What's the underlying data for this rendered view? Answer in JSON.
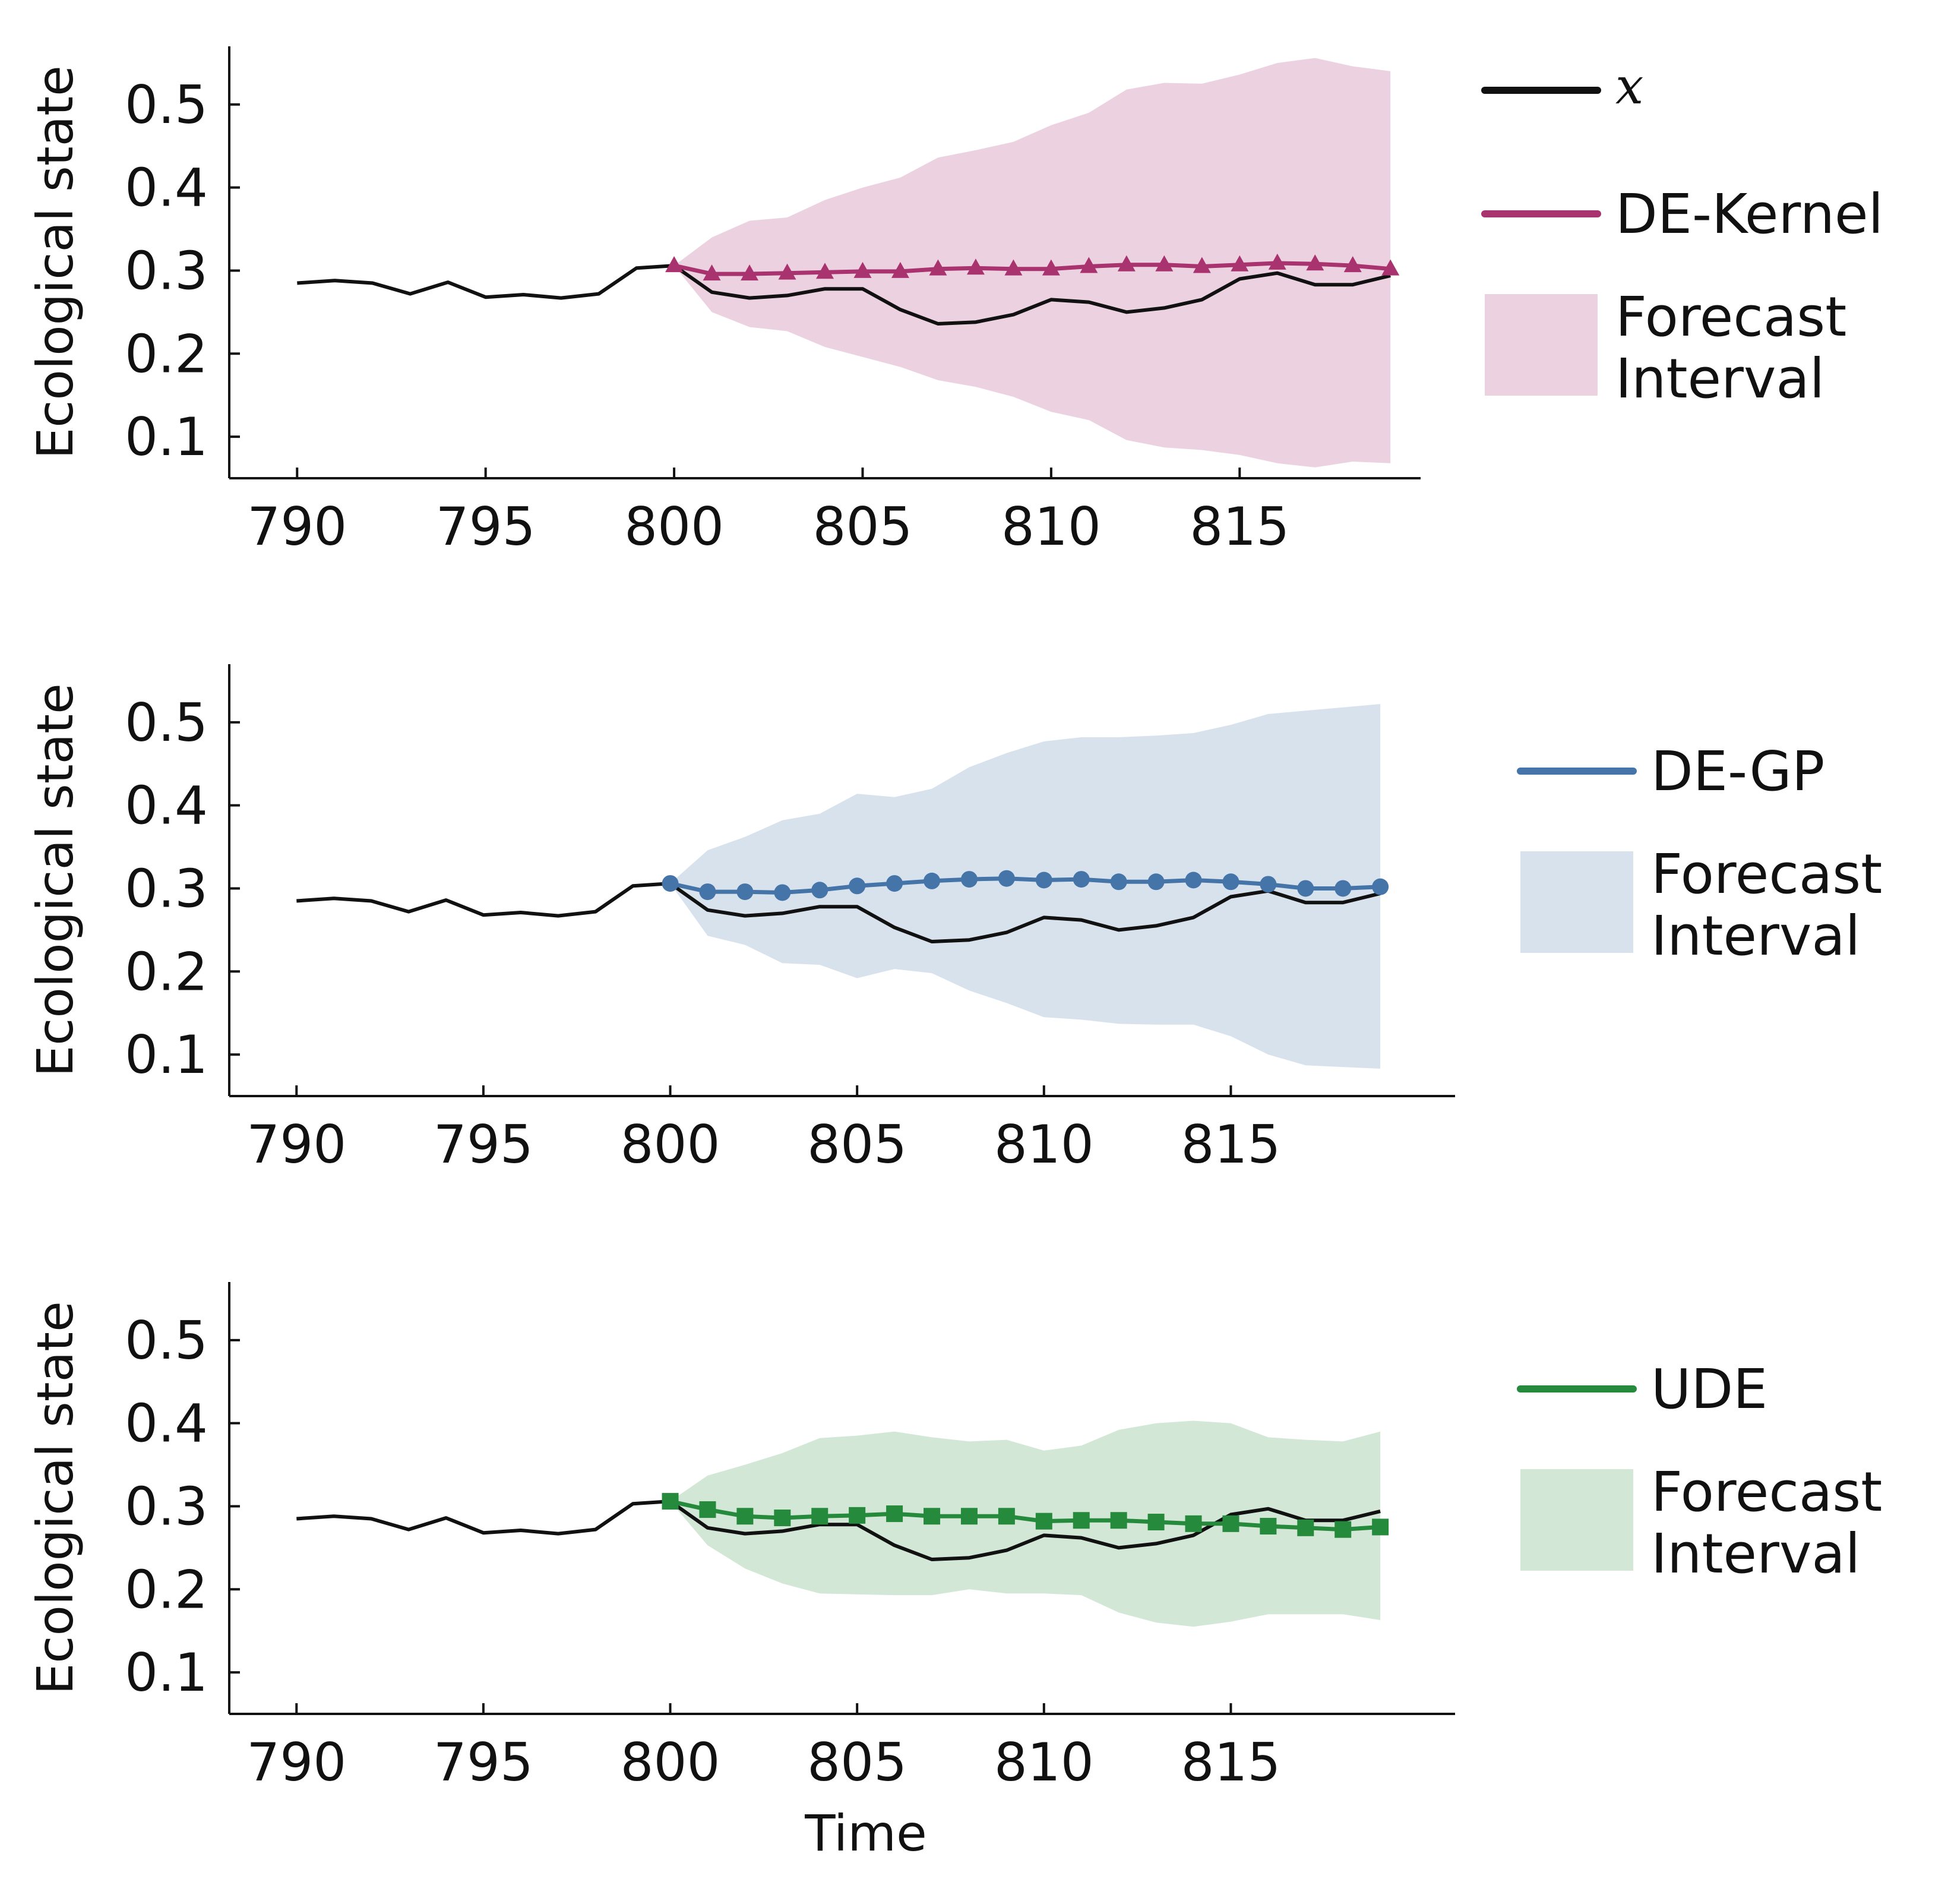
{
  "chart_data": [
    {
      "type": "line",
      "ylabel": "Ecological state",
      "xlabel": "",
      "xlim": [
        788.2,
        819.8
      ],
      "ylim": [
        0.05,
        0.57
      ],
      "x_ticks": [
        790,
        795,
        800,
        805,
        810,
        815
      ],
      "y_ticks": [
        0.1,
        0.2,
        0.3,
        0.4,
        0.5
      ],
      "tick_labels_x": [
        "790",
        "795",
        "800",
        "805",
        "810",
        "815"
      ],
      "tick_labels_y": [
        "0.1",
        "0.2",
        "0.3",
        "0.4",
        "0.5"
      ],
      "series": [
        {
          "name": "x",
          "color": "#111111",
          "x": [
            790,
            791,
            792,
            793,
            794,
            795,
            796,
            797,
            798,
            799,
            800,
            801,
            802,
            803,
            804,
            805,
            806,
            807,
            808,
            809,
            810,
            811,
            812,
            813,
            814,
            815,
            816,
            817,
            818,
            819
          ],
          "values": [
            0.285,
            0.288,
            0.285,
            0.272,
            0.286,
            0.268,
            0.271,
            0.267,
            0.272,
            0.303,
            0.306,
            0.274,
            0.267,
            0.27,
            0.278,
            0.278,
            0.253,
            0.236,
            0.238,
            0.247,
            0.265,
            0.262,
            0.25,
            0.255,
            0.265,
            0.29,
            0.297,
            0.283,
            0.283,
            0.294
          ]
        },
        {
          "name": "DE-Kernel",
          "color": "#a8336f",
          "marker": "triangle",
          "x": [
            800,
            801,
            802,
            803,
            804,
            805,
            806,
            807,
            808,
            809,
            810,
            811,
            812,
            813,
            814,
            815,
            816,
            817,
            818,
            819
          ],
          "values": [
            0.306,
            0.296,
            0.296,
            0.297,
            0.298,
            0.299,
            0.299,
            0.302,
            0.303,
            0.302,
            0.302,
            0.305,
            0.307,
            0.307,
            0.305,
            0.307,
            0.309,
            0.308,
            0.306,
            0.302
          ]
        }
      ],
      "interval": {
        "name": "Forecast Interval",
        "color": "#ecd2e1",
        "x": [
          800,
          801,
          802,
          803,
          804,
          805,
          806,
          807,
          808,
          809,
          810,
          811,
          812,
          813,
          814,
          815,
          816,
          817,
          818,
          819
        ],
        "lower": [
          0.306,
          0.25,
          0.232,
          0.227,
          0.208,
          0.196,
          0.184,
          0.168,
          0.16,
          0.148,
          0.13,
          0.12,
          0.096,
          0.087,
          0.084,
          0.078,
          0.068,
          0.063,
          0.07,
          0.068
        ],
        "upper": [
          0.306,
          0.34,
          0.36,
          0.364,
          0.385,
          0.4,
          0.412,
          0.436,
          0.445,
          0.455,
          0.475,
          0.49,
          0.518,
          0.526,
          0.525,
          0.536,
          0.55,
          0.556,
          0.546,
          0.54
        ]
      },
      "legend": [
        {
          "kind": "line",
          "label": "x",
          "color": "#111111"
        },
        {
          "kind": "line",
          "label": "DE-Kernel",
          "color": "#a8336f"
        },
        {
          "kind": "patch",
          "label_lines": [
            "Forecast",
            "Interval"
          ],
          "color": "#ecd2e1"
        }
      ]
    },
    {
      "type": "line",
      "ylabel": "Ecological state",
      "xlabel": "",
      "xlim": [
        788.2,
        821.0
      ],
      "ylim": [
        0.05,
        0.57
      ],
      "x_ticks": [
        790,
        795,
        800,
        805,
        810,
        815
      ],
      "y_ticks": [
        0.1,
        0.2,
        0.3,
        0.4,
        0.5
      ],
      "tick_labels_x": [
        "790",
        "795",
        "800",
        "805",
        "810",
        "815"
      ],
      "tick_labels_y": [
        "0.1",
        "0.2",
        "0.3",
        "0.4",
        "0.5"
      ],
      "series": [
        {
          "name": "x",
          "color": "#111111",
          "x": [
            790,
            791,
            792,
            793,
            794,
            795,
            796,
            797,
            798,
            799,
            800,
            801,
            802,
            803,
            804,
            805,
            806,
            807,
            808,
            809,
            810,
            811,
            812,
            813,
            814,
            815,
            816,
            817,
            818,
            819
          ],
          "values": [
            0.285,
            0.288,
            0.285,
            0.272,
            0.286,
            0.268,
            0.271,
            0.267,
            0.272,
            0.303,
            0.306,
            0.274,
            0.267,
            0.27,
            0.278,
            0.278,
            0.253,
            0.236,
            0.238,
            0.247,
            0.265,
            0.262,
            0.25,
            0.255,
            0.265,
            0.29,
            0.297,
            0.283,
            0.283,
            0.294
          ]
        },
        {
          "name": "DE-GP",
          "color": "#4474a8",
          "marker": "circle",
          "x": [
            800,
            801,
            802,
            803,
            804,
            805,
            806,
            807,
            808,
            809,
            810,
            811,
            812,
            813,
            814,
            815,
            816,
            817,
            818,
            819
          ],
          "values": [
            0.306,
            0.296,
            0.296,
            0.295,
            0.298,
            0.303,
            0.306,
            0.309,
            0.311,
            0.312,
            0.31,
            0.311,
            0.308,
            0.308,
            0.31,
            0.308,
            0.305,
            0.3,
            0.3,
            0.302
          ]
        }
      ],
      "interval": {
        "name": "Forecast Interval",
        "color": "#d8e2ec",
        "x": [
          800,
          801,
          802,
          803,
          804,
          805,
          806,
          807,
          808,
          809,
          810,
          811,
          812,
          813,
          814,
          815,
          816,
          817,
          818,
          819
        ],
        "lower": [
          0.306,
          0.243,
          0.232,
          0.21,
          0.208,
          0.192,
          0.203,
          0.198,
          0.177,
          0.162,
          0.145,
          0.142,
          0.137,
          0.136,
          0.136,
          0.122,
          0.1,
          0.087,
          0.085,
          0.083
        ],
        "upper": [
          0.306,
          0.346,
          0.362,
          0.382,
          0.39,
          0.414,
          0.41,
          0.42,
          0.446,
          0.463,
          0.477,
          0.482,
          0.482,
          0.484,
          0.487,
          0.497,
          0.51,
          0.514,
          0.518,
          0.522
        ]
      },
      "legend": [
        {
          "kind": "line",
          "label": "DE-GP",
          "color": "#4474a8"
        },
        {
          "kind": "patch",
          "label_lines": [
            "Forecast",
            "Interval"
          ],
          "color": "#d8e2ec"
        }
      ]
    },
    {
      "type": "line",
      "ylabel": "Ecological state",
      "xlabel": "Time",
      "xlim": [
        788.2,
        821.0
      ],
      "ylim": [
        0.05,
        0.57
      ],
      "x_ticks": [
        790,
        795,
        800,
        805,
        810,
        815
      ],
      "y_ticks": [
        0.1,
        0.2,
        0.3,
        0.4,
        0.5
      ],
      "tick_labels_x": [
        "790",
        "795",
        "800",
        "805",
        "810",
        "815"
      ],
      "tick_labels_y": [
        "0.1",
        "0.2",
        "0.3",
        "0.4",
        "0.5"
      ],
      "series": [
        {
          "name": "x",
          "color": "#111111",
          "x": [
            790,
            791,
            792,
            793,
            794,
            795,
            796,
            797,
            798,
            799,
            800,
            801,
            802,
            803,
            804,
            805,
            806,
            807,
            808,
            809,
            810,
            811,
            812,
            813,
            814,
            815,
            816,
            817,
            818,
            819
          ],
          "values": [
            0.285,
            0.288,
            0.285,
            0.272,
            0.286,
            0.268,
            0.271,
            0.267,
            0.272,
            0.303,
            0.306,
            0.274,
            0.267,
            0.27,
            0.278,
            0.278,
            0.253,
            0.236,
            0.238,
            0.247,
            0.265,
            0.262,
            0.25,
            0.255,
            0.265,
            0.29,
            0.297,
            0.283,
            0.283,
            0.294
          ]
        },
        {
          "name": "UDE",
          "color": "#268a3c",
          "marker": "square",
          "x": [
            800,
            801,
            802,
            803,
            804,
            805,
            806,
            807,
            808,
            809,
            810,
            811,
            812,
            813,
            814,
            815,
            816,
            817,
            818,
            819
          ],
          "values": [
            0.306,
            0.296,
            0.288,
            0.286,
            0.288,
            0.289,
            0.291,
            0.288,
            0.288,
            0.288,
            0.282,
            0.283,
            0.283,
            0.281,
            0.279,
            0.279,
            0.276,
            0.274,
            0.272,
            0.275
          ]
        }
      ],
      "interval": {
        "name": "Forecast Interval",
        "color": "#d2e7d6",
        "x": [
          800,
          801,
          802,
          803,
          804,
          805,
          806,
          807,
          808,
          809,
          810,
          811,
          812,
          813,
          814,
          815,
          816,
          817,
          818,
          819
        ],
        "lower": [
          0.306,
          0.253,
          0.225,
          0.207,
          0.195,
          0.194,
          0.193,
          0.193,
          0.2,
          0.195,
          0.195,
          0.193,
          0.172,
          0.16,
          0.155,
          0.161,
          0.17,
          0.17,
          0.17,
          0.163
        ],
        "upper": [
          0.306,
          0.337,
          0.35,
          0.364,
          0.382,
          0.385,
          0.39,
          0.383,
          0.378,
          0.38,
          0.367,
          0.373,
          0.392,
          0.4,
          0.403,
          0.4,
          0.383,
          0.38,
          0.378,
          0.39
        ]
      },
      "legend": [
        {
          "kind": "line",
          "label": "UDE",
          "color": "#268a3c"
        },
        {
          "kind": "patch",
          "label_lines": [
            "Forecast",
            "Interval"
          ],
          "color": "#d2e7d6"
        }
      ]
    }
  ]
}
